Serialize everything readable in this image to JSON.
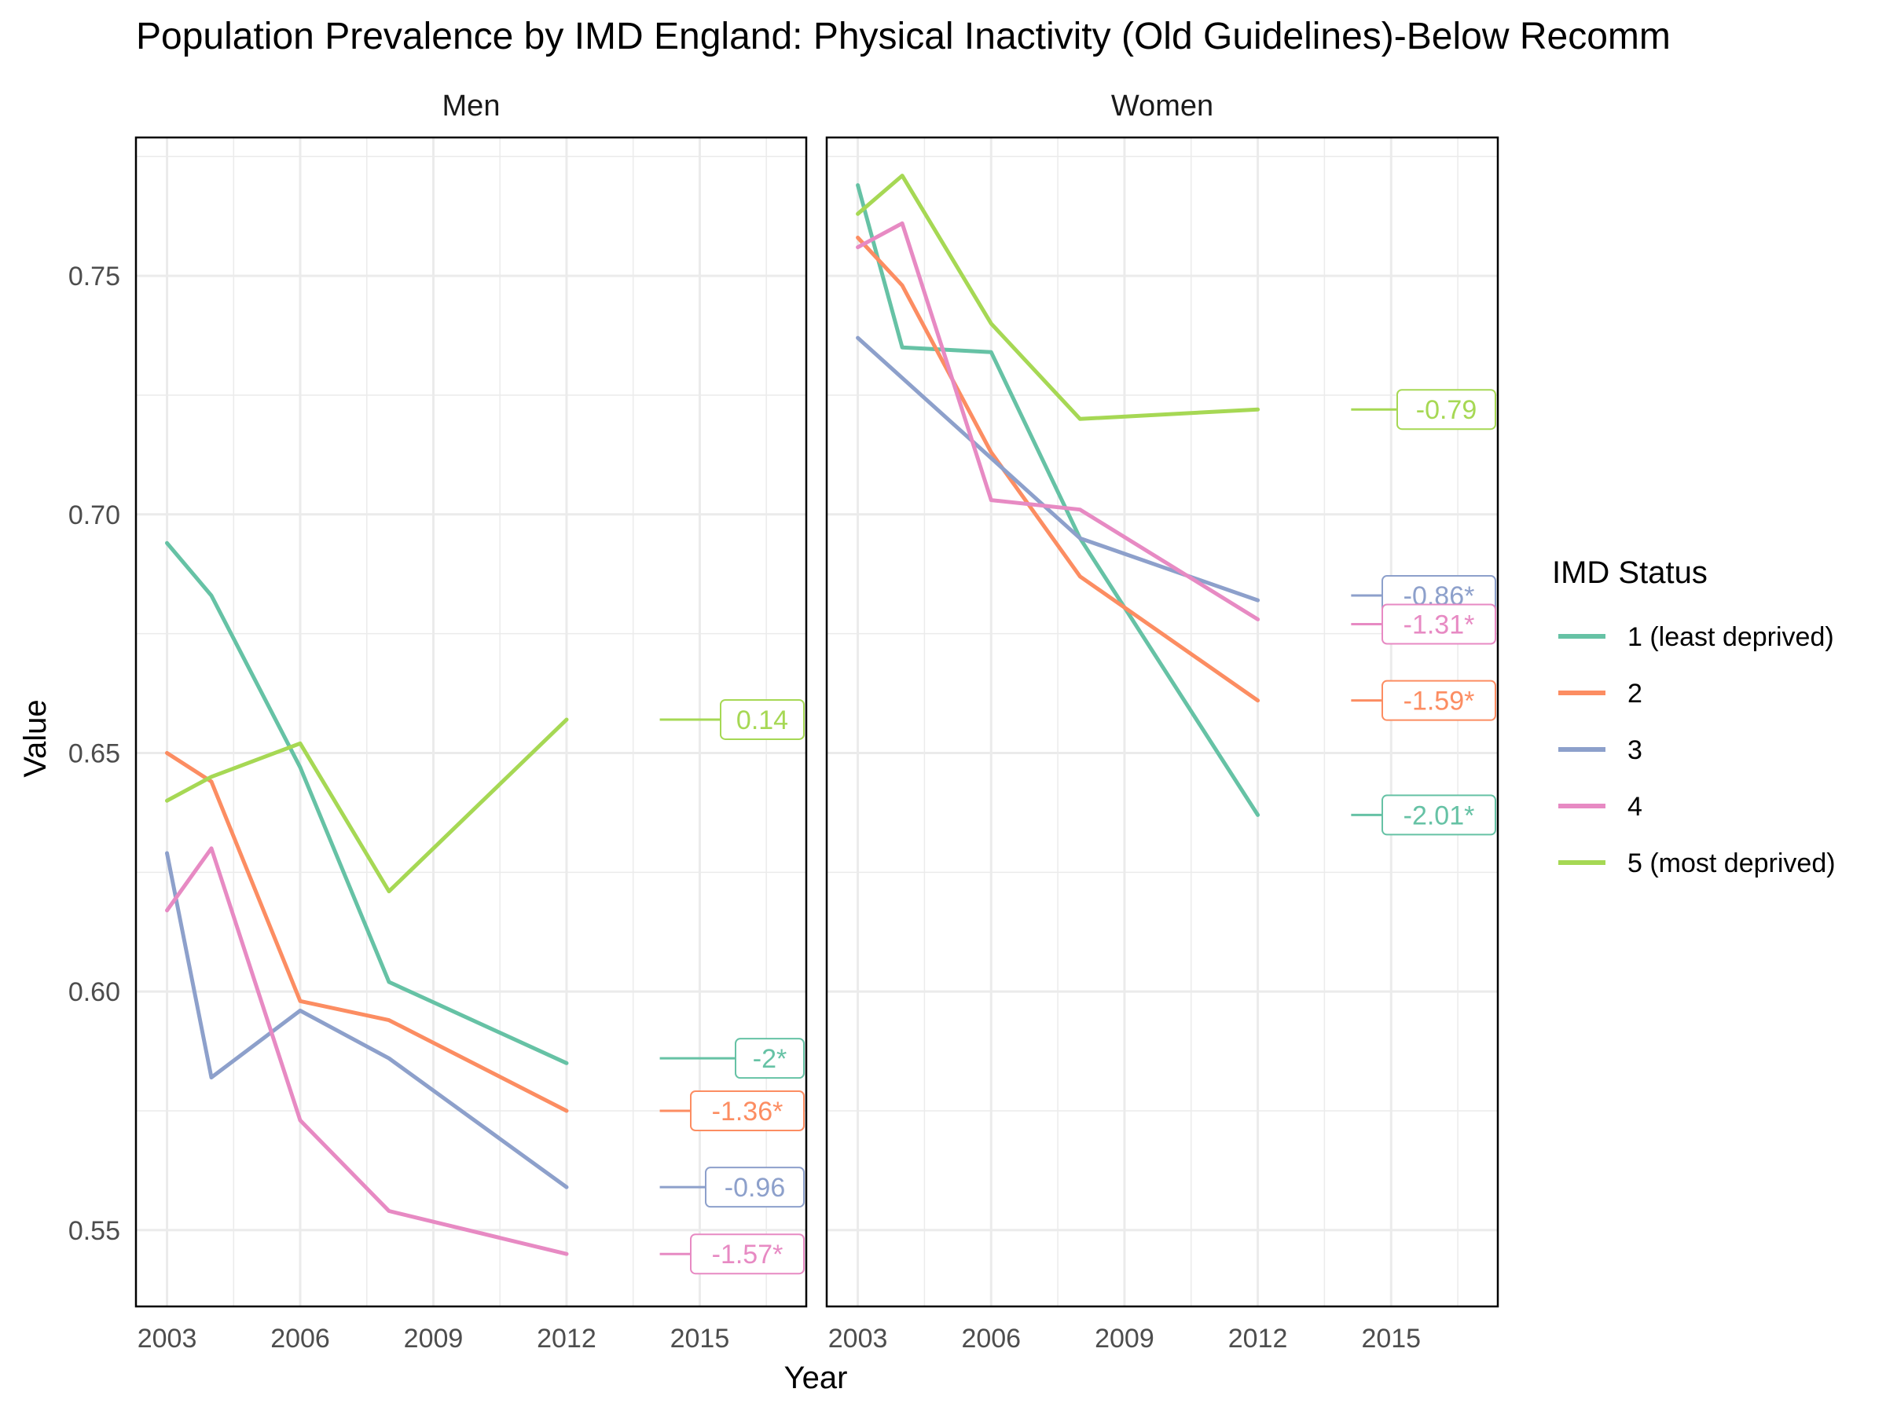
{
  "chart_data": {
    "type": "line",
    "title": "Population Prevalence by IMD England: Physical Inactivity (Old Guidelines)-Below Recomm",
    "xlabel": "Year",
    "ylabel": "Value",
    "xlim": [
      2002.3,
      2017.4
    ],
    "ylim": [
      0.534,
      0.779
    ],
    "x_ticks": [
      2003,
      2006,
      2009,
      2012,
      2015
    ],
    "y_ticks": [
      0.55,
      0.6,
      0.65,
      0.7,
      0.75
    ],
    "y_tick_labels": [
      "0.55",
      "0.60",
      "0.65",
      "0.70",
      "0.75"
    ],
    "x_tick_labels": [
      "2003",
      "2006",
      "2009",
      "2012",
      "2015"
    ],
    "grid": true,
    "legend": {
      "title": "IMD Status",
      "position": "right",
      "entries": [
        "1 (least deprived)",
        "2",
        "3",
        "4",
        "5 (most deprived)"
      ]
    },
    "series_colors": [
      "#66c2a5",
      "#fc8d62",
      "#8da0cb",
      "#e78ac3",
      "#a6d854"
    ],
    "label_segment_x": [
      2014.1,
      2015.8
    ],
    "facets": [
      {
        "name": "Men",
        "series": [
          {
            "name": "1 (least deprived)",
            "x": [
              2003,
              2004,
              2006,
              2008,
              2012
            ],
            "values": [
              0.694,
              0.683,
              0.647,
              0.602,
              0.585
            ],
            "label": "-2*",
            "label_y": 0.586
          },
          {
            "name": "2",
            "x": [
              2003,
              2004,
              2006,
              2008,
              2012
            ],
            "values": [
              0.65,
              0.644,
              0.598,
              0.594,
              0.575
            ],
            "label": "-1.36*",
            "label_y": 0.575
          },
          {
            "name": "3",
            "x": [
              2003,
              2004,
              2006,
              2008,
              2012
            ],
            "values": [
              0.629,
              0.582,
              0.596,
              0.586,
              0.559
            ],
            "label": "-0.96",
            "label_y": 0.559
          },
          {
            "name": "4",
            "x": [
              2003,
              2004,
              2006,
              2008,
              2012
            ],
            "values": [
              0.617,
              0.63,
              0.573,
              0.554,
              0.545
            ],
            "label": "-1.57*",
            "label_y": 0.545
          },
          {
            "name": "5 (most deprived)",
            "x": [
              2003,
              2004,
              2006,
              2008,
              2012
            ],
            "values": [
              0.64,
              0.645,
              0.652,
              0.621,
              0.657
            ],
            "label": "0.14",
            "label_y": 0.657
          }
        ]
      },
      {
        "name": "Women",
        "series": [
          {
            "name": "1 (least deprived)",
            "x": [
              2003,
              2004,
              2006,
              2008,
              2012
            ],
            "values": [
              0.769,
              0.735,
              0.734,
              0.695,
              0.637
            ],
            "label": "-2.01*",
            "label_y": 0.637
          },
          {
            "name": "2",
            "x": [
              2003,
              2004,
              2006,
              2008,
              2012
            ],
            "values": [
              0.758,
              0.748,
              0.713,
              0.687,
              0.661
            ],
            "label": "-1.59*",
            "label_y": 0.661
          },
          {
            "name": "3",
            "x": [
              2003,
              2008,
              2012
            ],
            "values": [
              0.737,
              0.695,
              0.682
            ],
            "label": "-0.86*",
            "label_y": 0.683
          },
          {
            "name": "4",
            "x": [
              2003,
              2004,
              2006,
              2008,
              2012
            ],
            "values": [
              0.756,
              0.761,
              0.703,
              0.701,
              0.678
            ],
            "label": "-1.31*",
            "label_y": 0.677
          },
          {
            "name": "5 (most deprived)",
            "x": [
              2003,
              2004,
              2006,
              2008,
              2012
            ],
            "values": [
              0.763,
              0.771,
              0.74,
              0.72,
              0.722
            ],
            "label": "-0.79",
            "label_y": 0.722
          }
        ]
      }
    ]
  }
}
